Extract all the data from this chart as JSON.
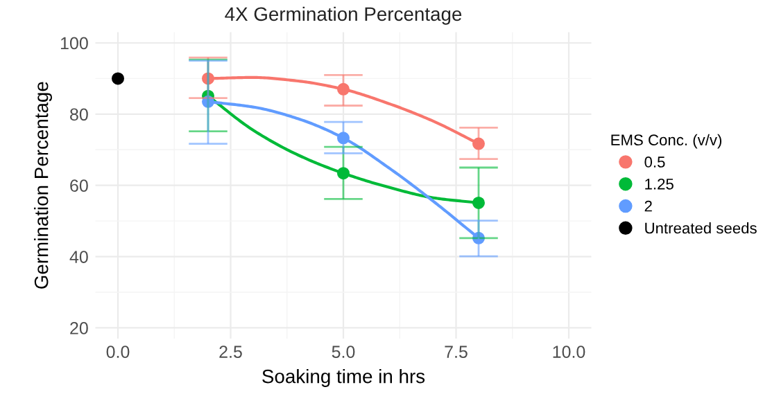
{
  "chart_data": {
    "type": "scatter",
    "title": "4X Germination Percentage",
    "xlabel": "Soaking time in hrs",
    "ylabel": "Germination Percentage",
    "legend_title": "EMS Conc. (v/v)",
    "legend": "right",
    "grid": true,
    "marker": "circle",
    "line_style": "solid",
    "xlim": [
      -0.5,
      10.5
    ],
    "ylim": [
      17,
      103
    ],
    "xticks": [
      {
        "value": 0,
        "label": "0.0"
      },
      {
        "value": 2.5,
        "label": "2.5"
      },
      {
        "value": 5,
        "label": "5.0"
      },
      {
        "value": 7.5,
        "label": "7.5"
      },
      {
        "value": 10,
        "label": "10.0"
      }
    ],
    "yticks": [
      20,
      40,
      60,
      80,
      100
    ],
    "series": [
      {
        "color": "#f8766d",
        "type": "line",
        "marker": "none",
        "x": [
          2,
          3,
          4,
          5,
          6,
          7,
          8
        ],
        "values": [
          90,
          90.3,
          89.3,
          87,
          83,
          78,
          71.7
        ]
      },
      {
        "color": "#00ba38",
        "type": "line",
        "marker": "none",
        "x": [
          2,
          3,
          4,
          5,
          6,
          7,
          8
        ],
        "values": [
          85.1,
          75.5,
          68.5,
          63.4,
          59.5,
          56.5,
          55.1
        ]
      },
      {
        "color": "#619cff",
        "type": "line",
        "marker": "none",
        "x": [
          2,
          3,
          4,
          5,
          6,
          7,
          8
        ],
        "values": [
          83.5,
          82,
          78.7,
          73.3,
          65,
          55.5,
          45.2
        ]
      },
      {
        "name": "0.5",
        "color": "#f8766d",
        "x": [
          2,
          5,
          8
        ],
        "values": [
          90,
          87,
          71.7
        ],
        "errors": [
          [
            84.5,
            95.9
          ],
          [
            82.4,
            91
          ],
          [
            67.4,
            76.2
          ]
        ]
      },
      {
        "name": "1.25",
        "color": "#00ba38",
        "x": [
          2,
          5,
          8
        ],
        "values": [
          85.1,
          63.4,
          55.1
        ],
        "errors": [
          [
            75.2,
            95.3
          ],
          [
            56.2,
            70.8
          ],
          [
            45.2,
            65
          ]
        ]
      },
      {
        "name": "2",
        "color": "#619cff",
        "x": [
          2,
          5,
          8
        ],
        "values": [
          83.5,
          73.3,
          45.2
        ],
        "errors": [
          [
            71.7,
            95
          ],
          [
            69,
            77.8
          ],
          [
            40.1,
            50.1
          ]
        ]
      },
      {
        "name": "Untreated seeds",
        "color": "#000000",
        "x": [
          0
        ],
        "values": [
          90
        ]
      }
    ]
  }
}
